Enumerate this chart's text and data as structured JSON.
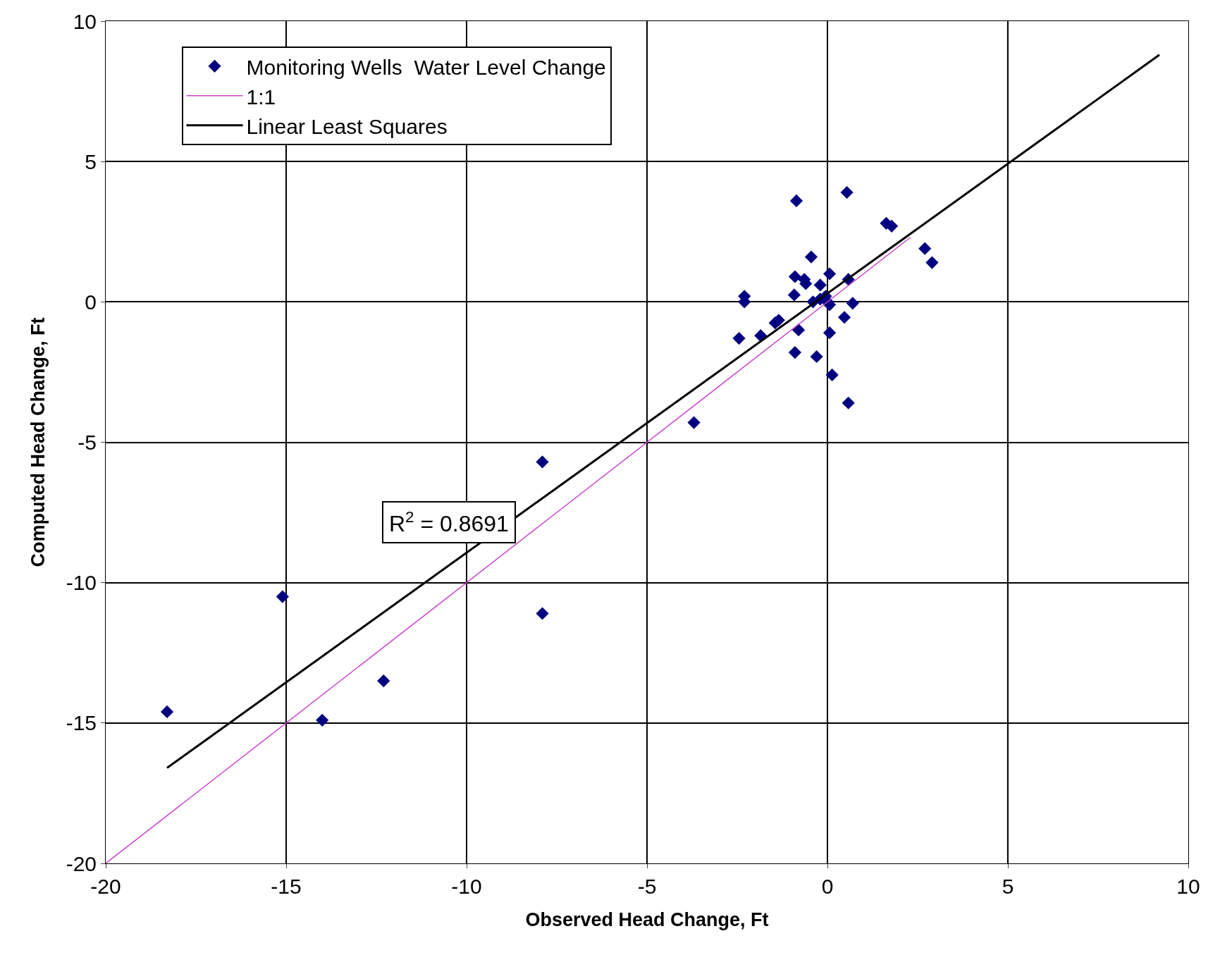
{
  "chart_data": {
    "type": "scatter",
    "xlabel": "Observed Head Change, Ft",
    "ylabel": "Computed Head Change, Ft",
    "xlim": [
      -20,
      10
    ],
    "xticks": [
      -20,
      -15,
      -10,
      -5,
      0,
      5,
      10
    ],
    "ylim": [
      -20,
      10
    ],
    "yticks": [
      -20,
      -15,
      -10,
      -5,
      0,
      5,
      10
    ],
    "grid": true,
    "legend": "top left",
    "annotations": [
      "R$^{2}$ = 0.8691"
    ],
    "series": [
      {
        "name": "Monitoring Wells  Water Level Change",
        "marker": "diamond",
        "color": "#000080",
        "x": [
          -18.3,
          -15.1,
          -14.0,
          -12.3,
          -7.9,
          -7.9,
          -3.7,
          -0.86,
          0.54,
          1.63,
          1.78,
          2.7,
          2.9,
          -0.45,
          -0.9,
          -0.64,
          -0.6,
          -0.2,
          0.06,
          0.58,
          -0.92,
          -2.3,
          -2.3,
          -0.4,
          -0.2,
          -0.05,
          0.06,
          0.0,
          0.7,
          0.47,
          -0.8,
          -1.45,
          -1.35,
          -2.45,
          -1.85,
          -0.9,
          -0.3,
          0.06,
          0.13,
          0.58
        ],
        "values": [
          -14.6,
          -10.5,
          -14.9,
          -13.5,
          -5.7,
          -11.1,
          -4.3,
          3.6,
          3.9,
          2.8,
          2.7,
          1.9,
          1.4,
          1.6,
          0.9,
          0.8,
          0.65,
          0.6,
          1.0,
          0.8,
          0.25,
          0.2,
          0.0,
          0.0,
          0.1,
          0.2,
          -0.1,
          0.0,
          -0.05,
          -0.55,
          -1.0,
          -0.75,
          -0.65,
          -1.3,
          -1.2,
          -1.8,
          -1.95,
          -1.1,
          -2.6,
          -3.6
        ]
      },
      {
        "name": "1:1",
        "type": "line",
        "marker": "none",
        "color": "#cc44cc",
        "x": [
          -20,
          2.3
        ],
        "values": [
          -20,
          2.3
        ]
      },
      {
        "name": "Linear Least Squares",
        "type": "line",
        "marker": "none",
        "color": "#000000",
        "x": [
          -18.3,
          9.2
        ],
        "values": [
          -16.6,
          8.8
        ]
      }
    ]
  }
}
